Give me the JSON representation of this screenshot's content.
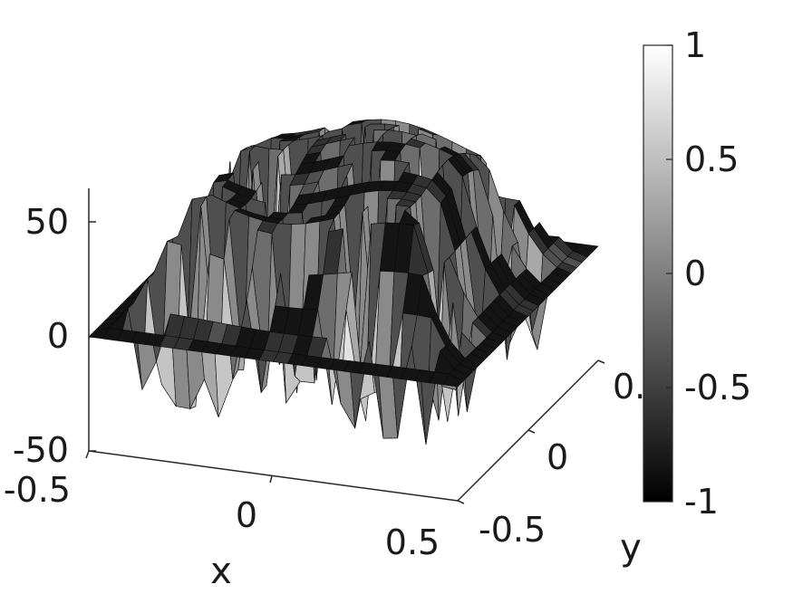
{
  "chart_data": {
    "type": "surface",
    "title": "",
    "xlabel": "x",
    "ylabel": "y",
    "zlabel": "",
    "x_ticks": [
      "-0.5",
      "0",
      "0.5"
    ],
    "y_ticks": [
      "-0.5",
      "0",
      "0."
    ],
    "z_ticks": [
      "-50",
      "0",
      "50"
    ],
    "xlim": [
      -0.5,
      0.5
    ],
    "ylim": [
      -0.5,
      0.5
    ],
    "zlim": [
      -50,
      65
    ],
    "colormap": "gray",
    "colorbar": {
      "ticks": [
        "1",
        "0.5",
        "0",
        "-0.5",
        "-1"
      ],
      "clim": [
        -1,
        1
      ],
      "low_color": "#000000",
      "high_color": "#ffffff"
    },
    "grid": false,
    "surface_description": {
      "base_level_z": 0,
      "plateau_height_z": 55,
      "spike_depth_z": -30
    }
  }
}
